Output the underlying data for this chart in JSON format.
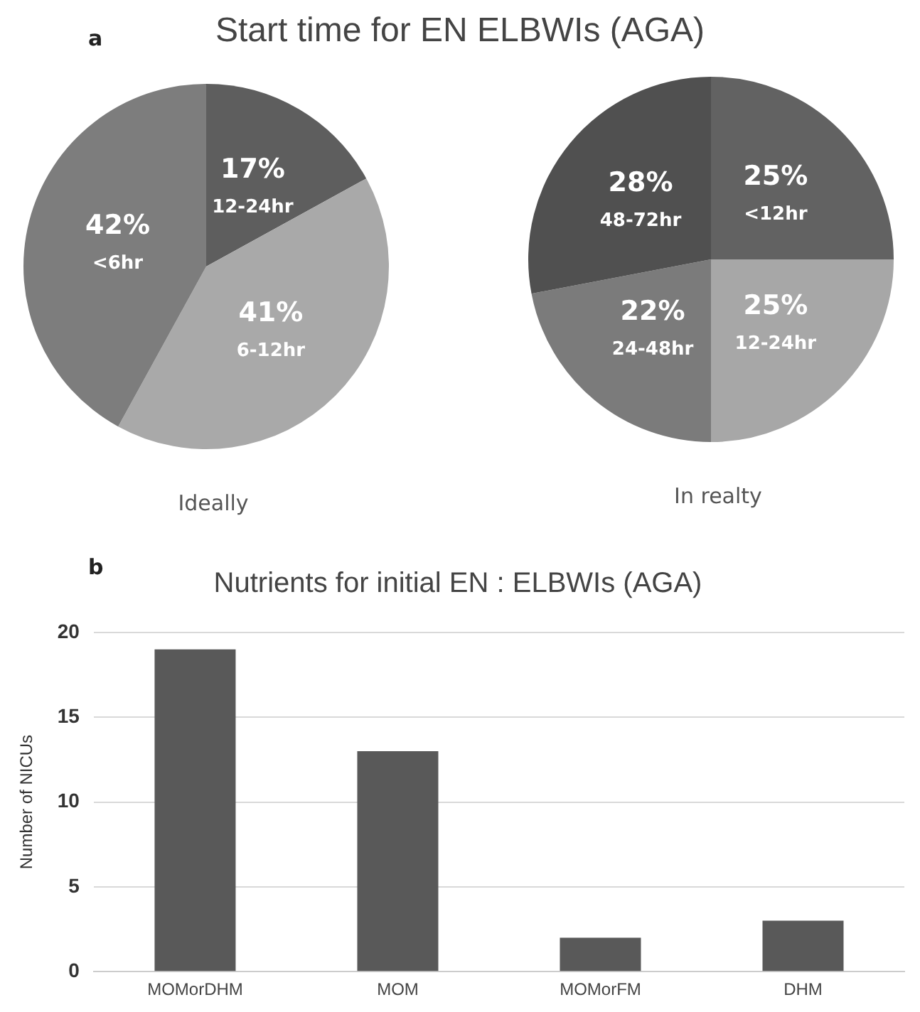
{
  "chart_data": [
    {
      "type": "pie",
      "title": "Start time for EN ELBWIs (AGA)",
      "xlabel": "Ideally",
      "annotations": [
        "a"
      ],
      "categories": [
        "12-24hr",
        "6-12hr",
        "<6hr"
      ],
      "values": [
        17,
        41,
        42
      ],
      "value_labels": [
        "17%",
        "41%",
        "42%"
      ],
      "colors": [
        "#5e5e5e",
        "#a9a9a9",
        "#7d7d7d"
      ]
    },
    {
      "type": "pie",
      "xlabel": "In realty",
      "categories": [
        "<12hr",
        "12-24hr",
        "24-48hr",
        "48-72hr"
      ],
      "values": [
        25,
        25,
        22,
        28
      ],
      "value_labels": [
        "25%",
        "25%",
        "22%",
        "28%"
      ],
      "colors": [
        "#626262",
        "#a7a7a7",
        "#7b7b7b",
        "#505050"
      ]
    },
    {
      "type": "bar",
      "title": "Nutrients for initial EN : ELBWIs (AGA)",
      "ylabel": "Number of NICUs",
      "annotations": [
        "b"
      ],
      "categories": [
        "MOMorDHM",
        "MOM",
        "MOMorFM",
        "DHM"
      ],
      "values": [
        19,
        13,
        2,
        3
      ],
      "color": "#595959",
      "ylim": [
        0,
        20
      ],
      "yticks": [
        0,
        5,
        10,
        15,
        20
      ],
      "grid": "y"
    }
  ]
}
